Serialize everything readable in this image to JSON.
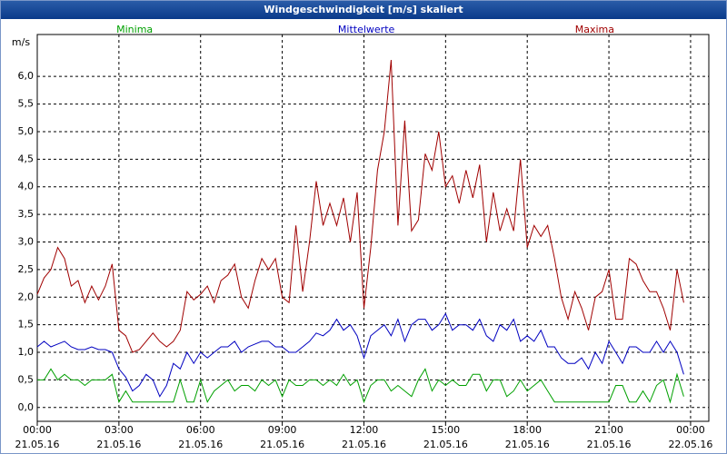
{
  "chart_data": {
    "type": "line",
    "title": "Windgeschwindigkeit [m/s] skaliert",
    "y_label": "m/s",
    "x": [
      0,
      0.25,
      0.5,
      0.75,
      1,
      1.25,
      1.5,
      1.75,
      2,
      2.25,
      2.5,
      2.75,
      3,
      3.25,
      3.5,
      3.75,
      4,
      4.25,
      4.5,
      4.75,
      5,
      5.25,
      5.5,
      5.75,
      6,
      6.25,
      6.5,
      6.75,
      7,
      7.25,
      7.5,
      7.75,
      8,
      8.25,
      8.5,
      8.75,
      9,
      9.25,
      9.5,
      9.75,
      10,
      10.25,
      10.5,
      10.75,
      11,
      11.25,
      11.5,
      11.75,
      12,
      12.25,
      12.5,
      12.75,
      13,
      13.25,
      13.5,
      13.75,
      14,
      14.25,
      14.5,
      14.75,
      15,
      15.25,
      15.5,
      15.75,
      16,
      16.25,
      16.5,
      16.75,
      17,
      17.25,
      17.5,
      17.75,
      18,
      18.25,
      18.5,
      18.75,
      19,
      19.25,
      19.5,
      19.75,
      20,
      20.25,
      20.5,
      20.75,
      21,
      21.25,
      21.5,
      21.75,
      22,
      22.25,
      22.5,
      22.75,
      23,
      23.25,
      23.5,
      23.75
    ],
    "series": [
      {
        "name": "Minima",
        "color": "#00a000",
        "values": [
          0.5,
          0.5,
          0.7,
          0.5,
          0.6,
          0.5,
          0.5,
          0.4,
          0.5,
          0.5,
          0.5,
          0.6,
          0.1,
          0.3,
          0.1,
          0.1,
          0.1,
          0.1,
          0.1,
          0.1,
          0.1,
          0.5,
          0.1,
          0.1,
          0.5,
          0.1,
          0.3,
          0.4,
          0.5,
          0.3,
          0.4,
          0.4,
          0.3,
          0.5,
          0.4,
          0.5,
          0.2,
          0.5,
          0.4,
          0.4,
          0.5,
          0.5,
          0.4,
          0.5,
          0.4,
          0.6,
          0.4,
          0.5,
          0.1,
          0.4,
          0.5,
          0.5,
          0.3,
          0.4,
          0.3,
          0.2,
          0.5,
          0.7,
          0.3,
          0.5,
          0.4,
          0.5,
          0.4,
          0.4,
          0.6,
          0.6,
          0.3,
          0.5,
          0.5,
          0.2,
          0.3,
          0.5,
          0.3,
          0.4,
          0.5,
          0.3,
          0.1,
          0.1,
          0.1,
          0.1,
          0.1,
          0.1,
          0.1,
          0.1,
          0.1,
          0.4,
          0.4,
          0.1,
          0.1,
          0.3,
          0.1,
          0.4,
          0.5,
          0.1,
          0.6,
          0.2
        ]
      },
      {
        "name": "Mittelwerte",
        "color": "#0000c0",
        "values": [
          1.1,
          1.2,
          1.1,
          1.15,
          1.2,
          1.1,
          1.05,
          1.05,
          1.1,
          1.05,
          1.05,
          1.0,
          0.7,
          0.55,
          0.3,
          0.4,
          0.6,
          0.5,
          0.2,
          0.4,
          0.8,
          0.7,
          1.0,
          0.8,
          1.0,
          0.9,
          1.0,
          1.1,
          1.1,
          1.2,
          1.0,
          1.1,
          1.15,
          1.2,
          1.2,
          1.1,
          1.1,
          1.0,
          1.0,
          1.1,
          1.2,
          1.35,
          1.3,
          1.4,
          1.6,
          1.4,
          1.5,
          1.3,
          0.9,
          1.3,
          1.4,
          1.5,
          1.3,
          1.6,
          1.2,
          1.5,
          1.6,
          1.6,
          1.4,
          1.5,
          1.7,
          1.4,
          1.5,
          1.5,
          1.4,
          1.6,
          1.3,
          1.2,
          1.5,
          1.4,
          1.6,
          1.2,
          1.3,
          1.2,
          1.4,
          1.1,
          1.1,
          0.9,
          0.8,
          0.8,
          0.9,
          0.7,
          1.0,
          0.8,
          1.2,
          1.0,
          0.8,
          1.1,
          1.1,
          1.0,
          1.0,
          1.2,
          1.0,
          1.2,
          1.0,
          0.6
        ]
      },
      {
        "name": "Maxima",
        "color": "#a00000",
        "values": [
          2.05,
          2.35,
          2.5,
          2.9,
          2.7,
          2.2,
          2.3,
          1.9,
          2.2,
          1.95,
          2.2,
          2.6,
          1.4,
          1.3,
          1.0,
          1.05,
          1.2,
          1.35,
          1.2,
          1.1,
          1.2,
          1.4,
          2.1,
          1.95,
          2.05,
          2.2,
          1.9,
          2.3,
          2.4,
          2.6,
          2.0,
          1.8,
          2.3,
          2.7,
          2.5,
          2.7,
          2.0,
          1.9,
          3.3,
          2.1,
          3.0,
          4.1,
          3.3,
          3.7,
          3.3,
          3.8,
          3.0,
          3.9,
          1.8,
          2.9,
          4.3,
          5.0,
          6.3,
          3.3,
          5.2,
          3.2,
          3.4,
          4.6,
          4.3,
          5.0,
          4.0,
          4.2,
          3.7,
          4.3,
          3.8,
          4.4,
          3.0,
          3.9,
          3.2,
          3.6,
          3.2,
          4.5,
          2.9,
          3.3,
          3.1,
          3.3,
          2.7,
          2.0,
          1.6,
          2.1,
          1.8,
          1.4,
          2.0,
          2.1,
          2.5,
          1.6,
          1.6,
          2.7,
          2.6,
          2.3,
          2.1,
          2.1,
          1.8,
          1.4,
          2.5,
          1.9
        ]
      }
    ],
    "xlim": [
      0,
      24.67
    ],
    "ylim": [
      -0.25,
      6.76
    ],
    "xticks": [
      {
        "value": 0,
        "label": "00:00 21.05.16"
      },
      {
        "value": 3,
        "label": "03:00 21.05.16"
      },
      {
        "value": 6,
        "label": "06:00 21.05.16"
      },
      {
        "value": 9,
        "label": "09:00 21.05.16"
      },
      {
        "value": 12,
        "label": "12:00 21.05.16"
      },
      {
        "value": 15,
        "label": "15:00 21.05.16"
      },
      {
        "value": 18,
        "label": "18:00 21.05.16"
      },
      {
        "value": 21,
        "label": "21:00 21.05.16"
      },
      {
        "value": 24,
        "label": "00:00 22.05.16"
      }
    ],
    "yticks": [
      {
        "value": 0,
        "label": "0,0"
      },
      {
        "value": 0.5,
        "label": "0,5"
      },
      {
        "value": 1,
        "label": "1,0"
      },
      {
        "value": 1.5,
        "label": "1,5"
      },
      {
        "value": 2,
        "label": "2,0"
      },
      {
        "value": 2.5,
        "label": "2,5"
      },
      {
        "value": 3,
        "label": "3,0"
      },
      {
        "value": 3.5,
        "label": "3,5"
      },
      {
        "value": 4,
        "label": "4,0"
      },
      {
        "value": 4.5,
        "label": "4,5"
      },
      {
        "value": 5,
        "label": "5,0"
      },
      {
        "value": 5.5,
        "label": "5,5"
      },
      {
        "value": 6,
        "label": "6,0"
      }
    ],
    "grid": true
  }
}
